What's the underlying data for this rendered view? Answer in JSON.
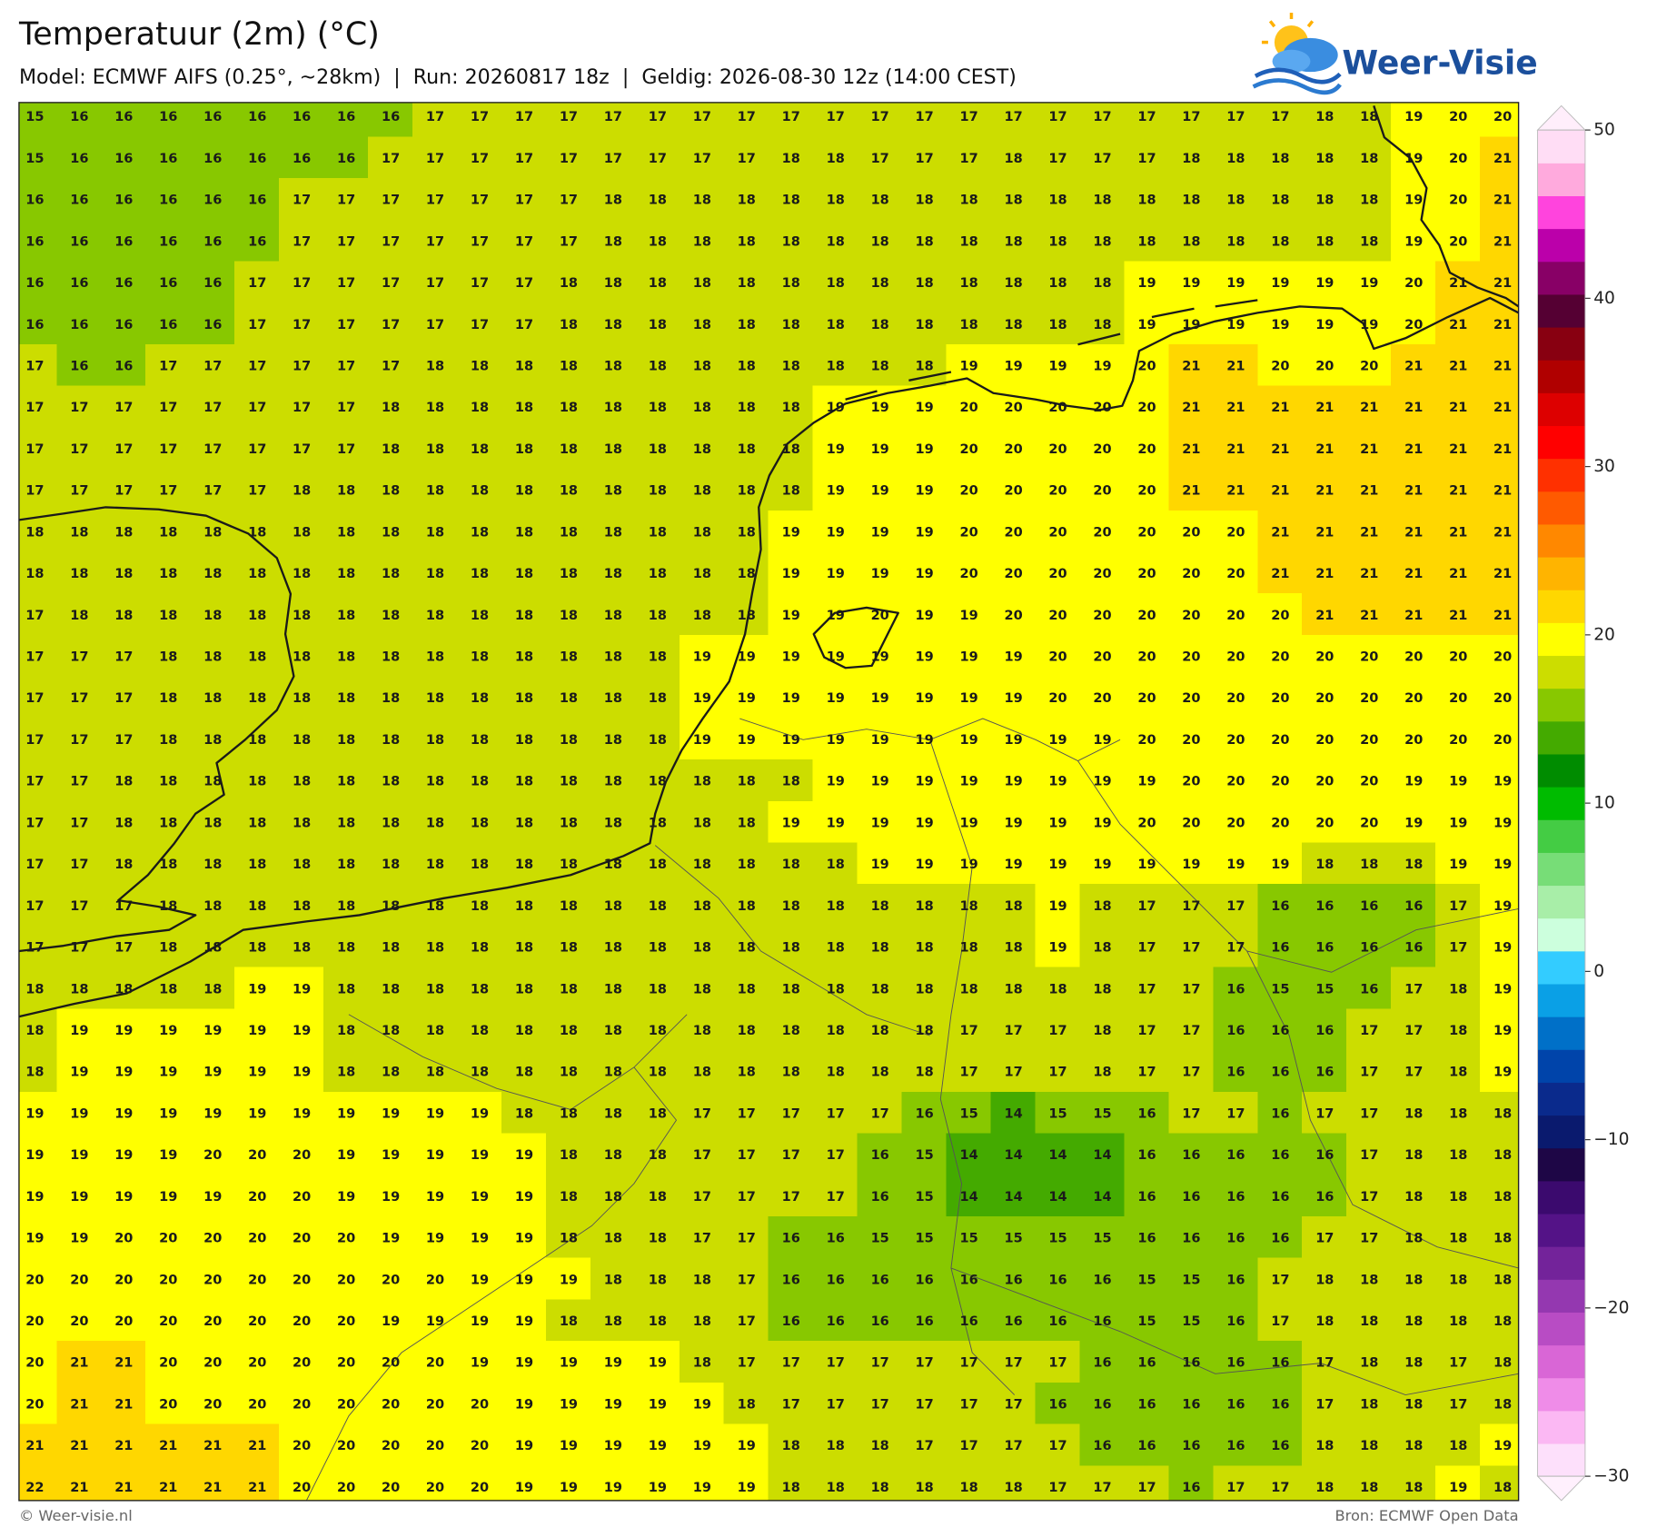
{
  "header": {
    "title": "Temperatuur (2m) (°C)",
    "subtitle": "Model: ECMWF AIFS (0.25°, ~28km)  |  Run: 20260817 18z  |  Geldig: 2026-08-30 12z (14:00 CEST)"
  },
  "logo": {
    "text": "Weer-Visie"
  },
  "footer": {
    "left": "© Weer-visie.nl",
    "right": "Bron: ECMWF Open Data"
  },
  "grid": {
    "values": [
      [
        15,
        16,
        16,
        16,
        16,
        16,
        16,
        16,
        16,
        17,
        17,
        17,
        17,
        17,
        17,
        17,
        17,
        17,
        17,
        17,
        17,
        17,
        17,
        17,
        17,
        17,
        17,
        17,
        17,
        18,
        18,
        19,
        20,
        20
      ],
      [
        15,
        16,
        16,
        16,
        16,
        16,
        16,
        16,
        17,
        17,
        17,
        17,
        17,
        17,
        17,
        17,
        17,
        18,
        18,
        17,
        17,
        17,
        18,
        17,
        17,
        17,
        18,
        18,
        18,
        18,
        18,
        19,
        20,
        21
      ],
      [
        16,
        16,
        16,
        16,
        16,
        16,
        17,
        17,
        17,
        17,
        17,
        17,
        17,
        18,
        18,
        18,
        18,
        18,
        18,
        18,
        18,
        18,
        18,
        18,
        18,
        18,
        18,
        18,
        18,
        18,
        18,
        19,
        20,
        21
      ],
      [
        16,
        16,
        16,
        16,
        16,
        16,
        17,
        17,
        17,
        17,
        17,
        17,
        17,
        18,
        18,
        18,
        18,
        18,
        18,
        18,
        18,
        18,
        18,
        18,
        18,
        18,
        18,
        18,
        18,
        18,
        18,
        19,
        20,
        21
      ],
      [
        16,
        16,
        16,
        16,
        16,
        17,
        17,
        17,
        17,
        17,
        17,
        17,
        18,
        18,
        18,
        18,
        18,
        18,
        18,
        18,
        18,
        18,
        18,
        18,
        18,
        19,
        19,
        19,
        19,
        19,
        19,
        20,
        21,
        21
      ],
      [
        16,
        16,
        16,
        16,
        16,
        17,
        17,
        17,
        17,
        17,
        17,
        17,
        18,
        18,
        18,
        18,
        18,
        18,
        18,
        18,
        18,
        18,
        18,
        18,
        18,
        19,
        19,
        19,
        19,
        19,
        19,
        20,
        21,
        21
      ],
      [
        17,
        16,
        16,
        17,
        17,
        17,
        17,
        17,
        17,
        18,
        18,
        18,
        18,
        18,
        18,
        18,
        18,
        18,
        18,
        18,
        18,
        19,
        19,
        19,
        19,
        20,
        21,
        21,
        20,
        20,
        20,
        21,
        21,
        21
      ],
      [
        17,
        17,
        17,
        17,
        17,
        17,
        17,
        17,
        18,
        18,
        18,
        18,
        18,
        18,
        18,
        18,
        18,
        18,
        19,
        19,
        19,
        20,
        20,
        20,
        20,
        20,
        21,
        21,
        21,
        21,
        21,
        21,
        21,
        21
      ],
      [
        17,
        17,
        17,
        17,
        17,
        17,
        17,
        17,
        18,
        18,
        18,
        18,
        18,
        18,
        18,
        18,
        18,
        18,
        19,
        19,
        19,
        20,
        20,
        20,
        20,
        20,
        21,
        21,
        21,
        21,
        21,
        21,
        21,
        21
      ],
      [
        17,
        17,
        17,
        17,
        17,
        17,
        18,
        18,
        18,
        18,
        18,
        18,
        18,
        18,
        18,
        18,
        18,
        18,
        19,
        19,
        19,
        20,
        20,
        20,
        20,
        20,
        21,
        21,
        21,
        21,
        21,
        21,
        21,
        21
      ],
      [
        18,
        18,
        18,
        18,
        18,
        18,
        18,
        18,
        18,
        18,
        18,
        18,
        18,
        18,
        18,
        18,
        18,
        19,
        19,
        19,
        19,
        20,
        20,
        20,
        20,
        20,
        20,
        20,
        21,
        21,
        21,
        21,
        21,
        21
      ],
      [
        18,
        18,
        18,
        18,
        18,
        18,
        18,
        18,
        18,
        18,
        18,
        18,
        18,
        18,
        18,
        18,
        18,
        19,
        19,
        19,
        19,
        20,
        20,
        20,
        20,
        20,
        20,
        20,
        21,
        21,
        21,
        21,
        21,
        21
      ],
      [
        17,
        18,
        18,
        18,
        18,
        18,
        18,
        18,
        18,
        18,
        18,
        18,
        18,
        18,
        18,
        18,
        18,
        19,
        19,
        20,
        19,
        19,
        20,
        20,
        20,
        20,
        20,
        20,
        20,
        21,
        21,
        21,
        21,
        21
      ],
      [
        17,
        17,
        17,
        18,
        18,
        18,
        18,
        18,
        18,
        18,
        18,
        18,
        18,
        18,
        18,
        19,
        19,
        19,
        19,
        19,
        19,
        19,
        19,
        20,
        20,
        20,
        20,
        20,
        20,
        20,
        20,
        20,
        20,
        20
      ],
      [
        17,
        17,
        17,
        18,
        18,
        18,
        18,
        18,
        18,
        18,
        18,
        18,
        18,
        18,
        18,
        19,
        19,
        19,
        19,
        19,
        19,
        19,
        19,
        20,
        20,
        20,
        20,
        20,
        20,
        20,
        20,
        20,
        20,
        20
      ],
      [
        17,
        17,
        17,
        18,
        18,
        18,
        18,
        18,
        18,
        18,
        18,
        18,
        18,
        18,
        18,
        19,
        19,
        19,
        19,
        19,
        19,
        19,
        19,
        19,
        19,
        20,
        20,
        20,
        20,
        20,
        20,
        20,
        20,
        20
      ],
      [
        17,
        17,
        18,
        18,
        18,
        18,
        18,
        18,
        18,
        18,
        18,
        18,
        18,
        18,
        18,
        18,
        18,
        18,
        19,
        19,
        19,
        19,
        19,
        19,
        19,
        19,
        20,
        20,
        20,
        20,
        20,
        19,
        19,
        19
      ],
      [
        17,
        17,
        18,
        18,
        18,
        18,
        18,
        18,
        18,
        18,
        18,
        18,
        18,
        18,
        18,
        18,
        18,
        19,
        19,
        19,
        19,
        19,
        19,
        19,
        19,
        20,
        20,
        20,
        20,
        20,
        20,
        19,
        19,
        19
      ],
      [
        17,
        17,
        18,
        18,
        18,
        18,
        18,
        18,
        18,
        18,
        18,
        18,
        18,
        18,
        18,
        18,
        18,
        18,
        18,
        19,
        19,
        19,
        19,
        19,
        19,
        19,
        19,
        19,
        19,
        18,
        18,
        18,
        19,
        19
      ],
      [
        17,
        17,
        17,
        18,
        18,
        18,
        18,
        18,
        18,
        18,
        18,
        18,
        18,
        18,
        18,
        18,
        18,
        18,
        18,
        18,
        18,
        18,
        18,
        19,
        18,
        17,
        17,
        17,
        16,
        16,
        16,
        16,
        17,
        19
      ],
      [
        17,
        17,
        17,
        18,
        18,
        18,
        18,
        18,
        18,
        18,
        18,
        18,
        18,
        18,
        18,
        18,
        18,
        18,
        18,
        18,
        18,
        18,
        18,
        19,
        18,
        17,
        17,
        17,
        16,
        16,
        16,
        16,
        17,
        19
      ],
      [
        18,
        18,
        18,
        18,
        18,
        19,
        19,
        18,
        18,
        18,
        18,
        18,
        18,
        18,
        18,
        18,
        18,
        18,
        18,
        18,
        18,
        18,
        18,
        18,
        18,
        17,
        17,
        16,
        15,
        15,
        16,
        17,
        18,
        19
      ],
      [
        18,
        19,
        19,
        19,
        19,
        19,
        19,
        18,
        18,
        18,
        18,
        18,
        18,
        18,
        18,
        18,
        18,
        18,
        18,
        18,
        18,
        17,
        17,
        17,
        18,
        17,
        17,
        16,
        16,
        16,
        17,
        17,
        18,
        19
      ],
      [
        18,
        19,
        19,
        19,
        19,
        19,
        19,
        18,
        18,
        18,
        18,
        18,
        18,
        18,
        18,
        18,
        18,
        18,
        18,
        18,
        18,
        17,
        17,
        17,
        18,
        17,
        17,
        16,
        16,
        16,
        17,
        17,
        18,
        19
      ],
      [
        19,
        19,
        19,
        19,
        19,
        19,
        19,
        19,
        19,
        19,
        19,
        18,
        18,
        18,
        18,
        17,
        17,
        17,
        17,
        17,
        16,
        15,
        14,
        15,
        15,
        16,
        17,
        17,
        16,
        17,
        17,
        18,
        18,
        18
      ],
      [
        19,
        19,
        19,
        19,
        20,
        20,
        20,
        19,
        19,
        19,
        19,
        19,
        18,
        18,
        18,
        17,
        17,
        17,
        17,
        16,
        15,
        14,
        14,
        14,
        14,
        16,
        16,
        16,
        16,
        16,
        17,
        18,
        18,
        18
      ],
      [
        19,
        19,
        19,
        19,
        19,
        20,
        20,
        19,
        19,
        19,
        19,
        19,
        18,
        18,
        18,
        17,
        17,
        17,
        17,
        16,
        15,
        14,
        14,
        14,
        14,
        16,
        16,
        16,
        16,
        16,
        17,
        18,
        18,
        18
      ],
      [
        19,
        19,
        20,
        20,
        20,
        20,
        20,
        20,
        19,
        19,
        19,
        19,
        18,
        18,
        18,
        17,
        17,
        16,
        16,
        15,
        15,
        15,
        15,
        15,
        15,
        16,
        16,
        16,
        16,
        17,
        17,
        18,
        18,
        18
      ],
      [
        20,
        20,
        20,
        20,
        20,
        20,
        20,
        20,
        20,
        20,
        19,
        19,
        19,
        18,
        18,
        18,
        17,
        16,
        16,
        16,
        16,
        16,
        16,
        16,
        16,
        15,
        15,
        16,
        17,
        18,
        18,
        18,
        18,
        18
      ],
      [
        20,
        20,
        20,
        20,
        20,
        20,
        20,
        20,
        19,
        19,
        19,
        19,
        18,
        18,
        18,
        18,
        17,
        16,
        16,
        16,
        16,
        16,
        16,
        16,
        16,
        15,
        15,
        16,
        17,
        18,
        18,
        18,
        18,
        18
      ],
      [
        20,
        21,
        21,
        20,
        20,
        20,
        20,
        20,
        20,
        20,
        19,
        19,
        19,
        19,
        19,
        18,
        17,
        17,
        17,
        17,
        17,
        17,
        17,
        17,
        16,
        16,
        16,
        16,
        16,
        17,
        18,
        18,
        17,
        18
      ],
      [
        20,
        21,
        21,
        20,
        20,
        20,
        20,
        20,
        20,
        20,
        20,
        19,
        19,
        19,
        19,
        19,
        18,
        17,
        17,
        17,
        17,
        17,
        17,
        16,
        16,
        16,
        16,
        16,
        16,
        17,
        18,
        18,
        17,
        18
      ],
      [
        21,
        21,
        21,
        21,
        21,
        21,
        20,
        20,
        20,
        20,
        20,
        19,
        19,
        19,
        19,
        19,
        19,
        18,
        18,
        18,
        17,
        17,
        17,
        17,
        16,
        16,
        16,
        16,
        16,
        18,
        18,
        18,
        18,
        19
      ],
      [
        22,
        21,
        21,
        21,
        21,
        21,
        20,
        20,
        20,
        20,
        20,
        19,
        19,
        19,
        19,
        19,
        19,
        18,
        18,
        18,
        18,
        18,
        18,
        17,
        17,
        17,
        16,
        17,
        17,
        18,
        18,
        18,
        19,
        18
      ]
    ]
  },
  "colorbar": {
    "clim": [
      -30,
      50
    ],
    "ticks": [
      {
        "value": -30,
        "label": "−30"
      },
      {
        "value": -20,
        "label": "−20"
      },
      {
        "value": -10,
        "label": "−10"
      },
      0,
      10,
      20,
      30,
      40,
      50
    ],
    "colors": [
      "#fde0fb",
      "#fbb8f3",
      "#ef8ce8",
      "#d966d6",
      "#b84cc4",
      "#9438b0",
      "#73239a",
      "#541387",
      "#3b0a6e",
      "#1e0646",
      "#0a1a6e",
      "#0a2a8c",
      "#0044aa",
      "#0070c8",
      "#0aa0e6",
      "#33ccff",
      "#ccffdd",
      "#a8eea8",
      "#77dd77",
      "#44cc44",
      "#00bb00",
      "#008c00",
      "#44aa00",
      "#88c800",
      "#ccdd00",
      "#ffff00",
      "#ffd700",
      "#ffb400",
      "#ff8800",
      "#ff5a00",
      "#ff3000",
      "#ff0000",
      "#dd0000",
      "#b00000",
      "#880011",
      "#550033",
      "#880066",
      "#bb00aa",
      "#ff44dd",
      "#ffaadd",
      "#ffddf5"
    ],
    "under_color": "#fff0fd",
    "over_color": "#ffeefb"
  }
}
